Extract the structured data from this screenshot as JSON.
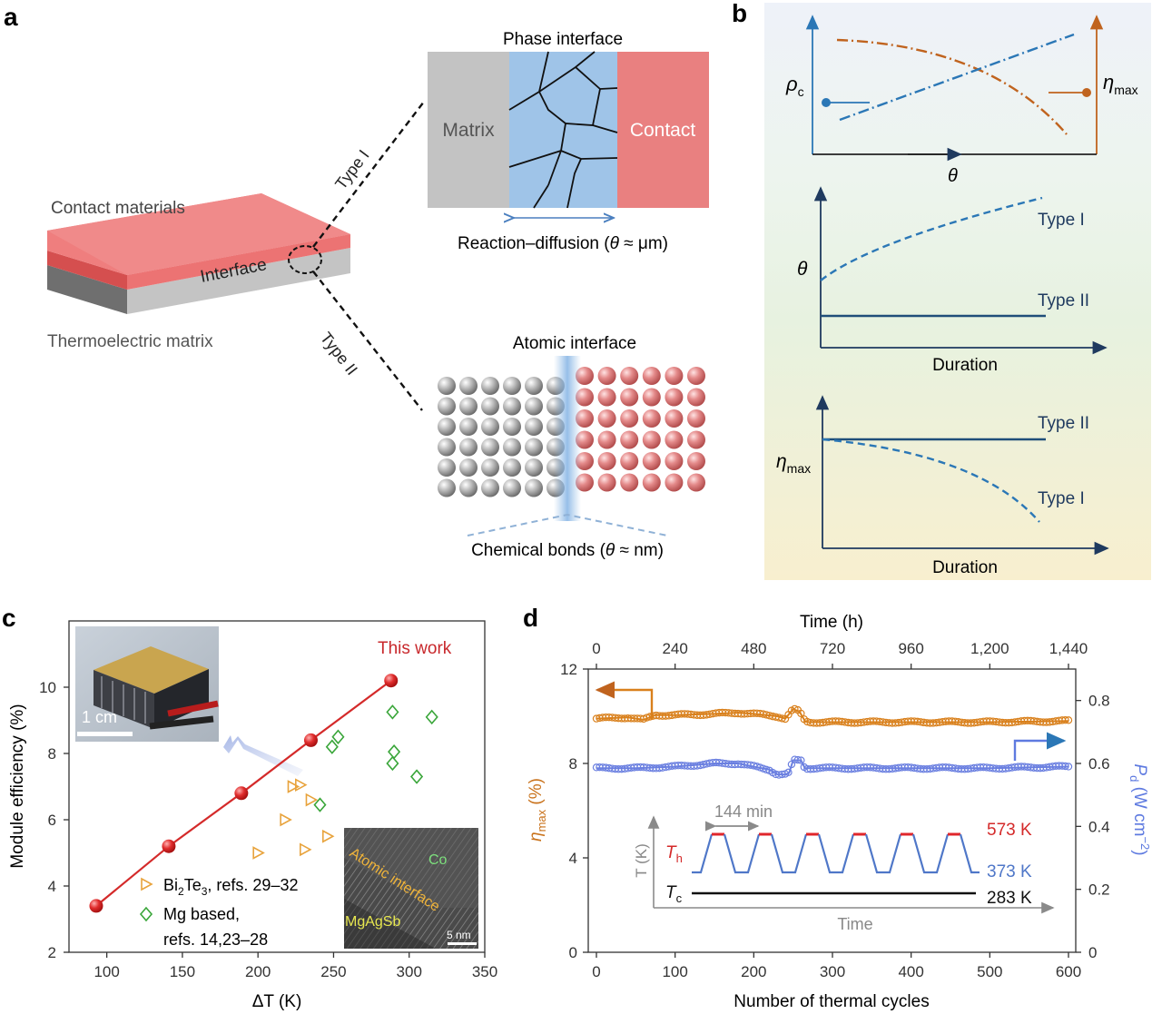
{
  "panel_labels": {
    "a": "a",
    "b": "b",
    "c": "c",
    "d": "d"
  },
  "panel_a": {
    "contact_materials": "Contact materials",
    "interface": "Interface",
    "thermoelectric_matrix": "Thermoelectric matrix",
    "type1": "Type I",
    "type2": "Type II",
    "phase_interface_title": "Phase interface",
    "matrix": "Matrix",
    "contact": "Contact",
    "reaction_diffusion_prefix": "Reaction–diffusion (",
    "reaction_diffusion_theta": "θ",
    "reaction_diffusion_suffix": " ≈ μm)",
    "atomic_interface_title": "Atomic interface",
    "chemical_bonds_prefix": "Chemical bonds (",
    "chemical_bonds_theta": "θ",
    "chemical_bonds_suffix": " ≈ nm)",
    "colors": {
      "contact_red": "#e98080",
      "matrix_grey": "#c3c3c3",
      "interface_blue": "#9fc4e8"
    }
  },
  "panel_b": {
    "top_left_label": "ρ",
    "top_left_sub": "c",
    "top_right_label": "η",
    "top_right_sub": "max",
    "top_x_label": "θ",
    "mid_y_label": "θ",
    "mid_type1": "Type I",
    "mid_type2": "Type II",
    "mid_x_label": "Duration",
    "bot_y_label": "η",
    "bot_y_sub": "max",
    "bot_type2": "Type II",
    "bot_type1": "Type I",
    "bot_x_label": "Duration",
    "colors": {
      "blue": "#2b77b6",
      "orange": "#c0631e",
      "navy": "#1f4e79"
    }
  },
  "chart_data": [
    {
      "type": "scatter",
      "panel": "c",
      "xlabel": "ΔT (K)",
      "ylabel": "Module efficiency (%)",
      "xlim": [
        75,
        350
      ],
      "ylim": [
        2,
        12
      ],
      "xticks": [
        100,
        150,
        200,
        250,
        300,
        350
      ],
      "yticks": [
        2,
        4,
        6,
        8,
        10
      ],
      "annotation": "This work",
      "series": [
        {
          "name": "This work",
          "marker": "red-sphere",
          "color": "#d42a2a",
          "x": [
            93,
            141,
            189,
            235,
            288
          ],
          "y": [
            3.4,
            5.2,
            6.8,
            8.4,
            10.2
          ]
        },
        {
          "name": "Bi2Te3, refs. 29–32",
          "marker": "triangle-right",
          "color": "#e8a33c",
          "x": [
            200,
            218,
            223,
            228,
            235,
            231,
            246
          ],
          "y": [
            5.0,
            6.0,
            7.0,
            7.05,
            6.6,
            5.1,
            5.5
          ]
        },
        {
          "name": "Mg based, refs. 14,23–28",
          "marker": "diamond",
          "color": "#3aa63a",
          "x": [
            249,
            253,
            241,
            289,
            290,
            289,
            315,
            305
          ],
          "y": [
            8.2,
            8.5,
            6.45,
            9.25,
            8.05,
            7.7,
            9.1,
            7.3
          ]
        }
      ],
      "legend": [
        {
          "prefix": "Bi",
          "sub1": "2",
          "mid": "Te",
          "sub2": "3",
          "suffix": ", refs. 29–32"
        },
        {
          "line1": "Mg based,",
          "line2": "refs. 14,23–28"
        }
      ],
      "inset_photo": {
        "scale_label": "1 cm"
      },
      "inset_tem": {
        "co_label": "Co",
        "interface_label": "Atomic interface",
        "mgagsb_label": "MgAgSb",
        "scale_label": "5 nm"
      }
    },
    {
      "type": "line",
      "panel": "d",
      "xlabel": "Number of thermal cycles",
      "x2label": "Time (h)",
      "ylabel": "η",
      "ylabel_sub": "max",
      "ylabel_unit": " (%)",
      "y2label": "P",
      "y2label_sub": "d",
      "y2label_unit": " (W cm",
      "y2label_sup": "−2",
      "y2label_end": ")",
      "xlim": [
        0,
        600
      ],
      "ylim": [
        0,
        12
      ],
      "y2lim": [
        0,
        0.9
      ],
      "xticks": [
        0,
        100,
        200,
        300,
        400,
        500,
        600
      ],
      "x2ticks": [
        "0",
        "240",
        "480",
        "720",
        "960",
        "1,200",
        "1,440"
      ],
      "yticks": [
        0,
        4,
        8,
        12
      ],
      "y2ticks": [
        "0",
        "0.2",
        "0.4",
        "0.6",
        "0.8"
      ],
      "series": [
        {
          "name": "ηmax",
          "axis": "left",
          "color": "#d9801c",
          "x": [
            0,
            40,
            60,
            75,
            100,
            150,
            180,
            200,
            230,
            240,
            250,
            258,
            265,
            270,
            300,
            400,
            500,
            600
          ],
          "y": [
            9.9,
            9.95,
            9.85,
            10.05,
            10.05,
            10.1,
            10.15,
            10.1,
            10.0,
            9.9,
            10.3,
            10.2,
            9.8,
            9.75,
            9.75,
            9.75,
            9.75,
            9.8
          ]
        },
        {
          "name": "Pd",
          "axis": "right",
          "color": "#6a7fe0",
          "x": [
            0,
            50,
            100,
            150,
            180,
            200,
            220,
            230,
            240,
            245,
            250,
            260,
            265,
            300,
            400,
            500,
            600
          ],
          "y": [
            0.585,
            0.585,
            0.59,
            0.6,
            0.6,
            0.59,
            0.58,
            0.565,
            0.565,
            0.57,
            0.61,
            0.61,
            0.585,
            0.585,
            0.585,
            0.585,
            0.59
          ]
        }
      ],
      "inset": {
        "period_label": "144 min",
        "th_label": "T",
        "th_sub": "h",
        "tc_label": "T",
        "tc_sub": "c",
        "y_label": "T (K)",
        "x_label": "Time",
        "hot_label": "573 K",
        "mid_label": "373 K",
        "cold_label": "283 K",
        "cycles": 6
      }
    }
  ]
}
